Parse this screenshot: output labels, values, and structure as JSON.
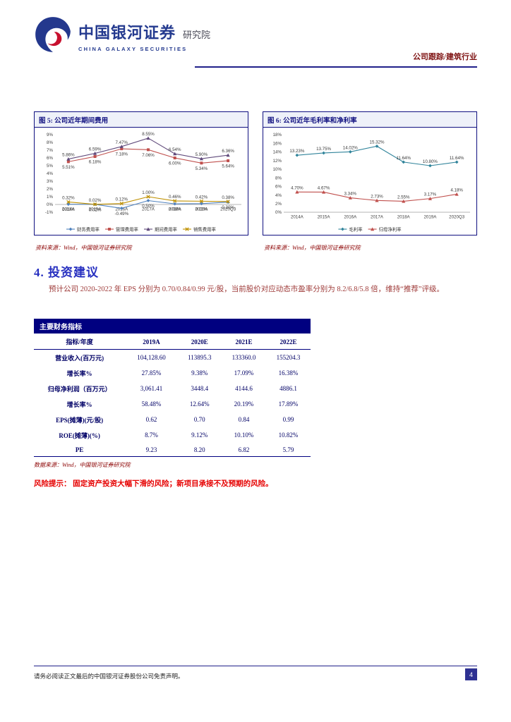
{
  "header": {
    "brand": "中国银河证券",
    "brand_suffix": "研究院",
    "brand_en": "CHINA GALAXY SECURITIES",
    "report_tag": "公司跟踪/建筑行业"
  },
  "section": {
    "heading": "4. 投资建议",
    "paragraph": "预计公司 2020-2022 年 EPS 分别为 0.70/0.84/0.99 元/股，当前股价对应动态市盈率分别为 8.2/6.8/5.8 倍，维持“推荐”评级。"
  },
  "table": {
    "title": "主要财务指标",
    "columns": [
      "指标/年度",
      "2019A",
      "2020E",
      "2021E",
      "2022E"
    ],
    "rows": [
      [
        "营业收入(百万元)",
        "104,128.60",
        "113895.3",
        "133360.0",
        "155204.3"
      ],
      [
        "增长率%",
        "27.85%",
        "9.38%",
        "17.09%",
        "16.38%"
      ],
      [
        "归母净利润（百万元）",
        "3,061.41",
        "3448.4",
        "4144.6",
        "4886.1"
      ],
      [
        "增长率%",
        "58.48%",
        "12.64%",
        "20.19%",
        "17.89%"
      ],
      [
        "EPS(摊薄)(元/股)",
        "0.62",
        "0.70",
        "0.84",
        "0.99"
      ],
      [
        "ROE(摊薄)(%)",
        "8.7%",
        "9.12%",
        "10.10%",
        "10.82%"
      ],
      [
        "PE",
        "9.23",
        "8.20",
        "6.82",
        "5.79"
      ]
    ],
    "source": "数据来源：Wind，中国银河证券研究院"
  },
  "risk": "风险提示： 固定资产投资大幅下滑的风险；新项目承接不及预期的风险。",
  "footer": {
    "disclaimer": "请务必阅读正文最后的中国银河证券股份公司免责声明。",
    "page_number": "4"
  },
  "colors": {
    "accent_navy": "#000080",
    "heading_blue": "#2730C0",
    "body_red": "#9E3A38",
    "risk_red": "#E60000",
    "source_red": "#8B0000"
  },
  "chart_data": [
    {
      "type": "line",
      "title": "图 5: 公司近年期间费用",
      "source": "资料来源：Wind，中国银河证券研究院",
      "categories": [
        "2014A",
        "2015A",
        "2016A",
        "2017A",
        "2018A",
        "2019A",
        "2020Q3"
      ],
      "ylim": [
        -1,
        9
      ],
      "ytick_step": 1,
      "legend_position": "bottom",
      "grid": false,
      "series": [
        {
          "name": "财务费用率",
          "color": "#4F81BD",
          "marker": "diamond",
          "label_pos": "below",
          "values": [
            0.03,
            0.02,
            -0.49,
            0.5,
            0.08,
            0.11,
            0.3
          ]
        },
        {
          "name": "管理费用率",
          "color": "#C0504D",
          "marker": "square",
          "label_pos": "below",
          "values": [
            5.51,
            6.18,
            7.18,
            7.06,
            6.0,
            5.34,
            5.64
          ]
        },
        {
          "name": "期间费用率",
          "color": "#604A7B",
          "marker": "triangle",
          "label_pos": "above",
          "values": [
            5.86,
            6.59,
            7.47,
            8.55,
            6.54,
            5.9,
            6.36
          ]
        },
        {
          "name": "销售费用率",
          "color": "#BF9000",
          "marker": "x",
          "label_pos": "above",
          "values": [
            0.32,
            0.02,
            0.12,
            1.0,
            0.46,
            0.42,
            0.38
          ]
        }
      ]
    },
    {
      "type": "line",
      "title": "图 6: 公司近年毛利率和净利率",
      "source": "资料来源：Wind，中国银河证券研究院",
      "categories": [
        "2014A",
        "2015A",
        "2016A",
        "2017A",
        "2018A",
        "2019A",
        "2020Q3"
      ],
      "ylim": [
        0,
        18
      ],
      "ytick_step": 2,
      "legend_position": "bottom",
      "grid": false,
      "series": [
        {
          "name": "毛利率",
          "color": "#31849B",
          "marker": "diamond",
          "label_pos": "above",
          "values": [
            13.23,
            13.75,
            14.02,
            15.32,
            11.64,
            10.8,
            11.64
          ]
        },
        {
          "name": "归母净利率",
          "color": "#C0504D",
          "marker": "triangle",
          "label_pos": "above",
          "values": [
            4.7,
            4.67,
            3.34,
            2.73,
            2.55,
            3.17,
            4.18
          ]
        }
      ]
    }
  ]
}
